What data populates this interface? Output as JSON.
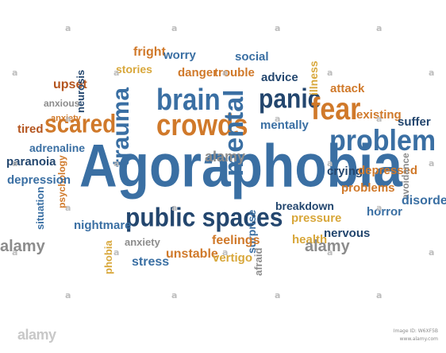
{
  "colors": {
    "blue": "#3a6fa3",
    "navy": "#23466e",
    "orange": "#d0792a",
    "rust": "#b4551f",
    "gold": "#d8a73a",
    "grey": "#8c8c8c",
    "watermark": "#bdbdbd"
  },
  "watermark": {
    "mark": "a",
    "logo": "alamy",
    "image_id_line": "Image ID: W6XF5B",
    "site_line": "www.alamy.com"
  },
  "words": [
    {
      "text": "Agoraphobia",
      "color": "blue"
    },
    {
      "text": "public spaces",
      "color": "navy"
    },
    {
      "text": "problem",
      "color": "blue"
    },
    {
      "text": "crowds",
      "color": "orange"
    },
    {
      "text": "brain",
      "color": "blue"
    },
    {
      "text": "trauma",
      "color": "blue"
    },
    {
      "text": "mental",
      "color": "blue"
    },
    {
      "text": "panic",
      "color": "navy"
    },
    {
      "text": "fear",
      "color": "orange"
    },
    {
      "text": "scared",
      "color": "orange"
    },
    {
      "text": "fright",
      "color": "orange"
    },
    {
      "text": "worry",
      "color": "blue"
    },
    {
      "text": "social",
      "color": "blue"
    },
    {
      "text": "stories",
      "color": "gold"
    },
    {
      "text": "danger",
      "color": "orange"
    },
    {
      "text": "trouble",
      "color": "orange"
    },
    {
      "text": "advice",
      "color": "navy"
    },
    {
      "text": "illness",
      "color": "gold"
    },
    {
      "text": "upset",
      "color": "rust"
    },
    {
      "text": "neurosis",
      "color": "navy"
    },
    {
      "text": "attack",
      "color": "orange"
    },
    {
      "text": "anxious",
      "color": "grey"
    },
    {
      "text": "existing",
      "color": "orange"
    },
    {
      "text": "suffer",
      "color": "navy"
    },
    {
      "text": "anxiety",
      "color": "orange"
    },
    {
      "text": "tired",
      "color": "rust"
    },
    {
      "text": "mentally",
      "color": "blue"
    },
    {
      "text": "adrenaline",
      "color": "blue"
    },
    {
      "text": "paranoia",
      "color": "navy"
    },
    {
      "text": "psychology",
      "color": "orange"
    },
    {
      "text": "depression",
      "color": "blue"
    },
    {
      "text": "crying",
      "color": "navy"
    },
    {
      "text": "depressed",
      "color": "orange"
    },
    {
      "text": "avoidance",
      "color": "grey"
    },
    {
      "text": "problems",
      "color": "orange"
    },
    {
      "text": "situation",
      "color": "blue"
    },
    {
      "text": "breakdown",
      "color": "navy"
    },
    {
      "text": "horror",
      "color": "blue"
    },
    {
      "text": "disorder",
      "color": "blue"
    },
    {
      "text": "nightmare",
      "color": "blue"
    },
    {
      "text": "surprise",
      "color": "blue"
    },
    {
      "text": "pressure",
      "color": "gold"
    },
    {
      "text": "anxiety",
      "color": "grey"
    },
    {
      "text": "feelings",
      "color": "orange"
    },
    {
      "text": "health",
      "color": "gold"
    },
    {
      "text": "nervous",
      "color": "navy"
    },
    {
      "text": "phobia",
      "color": "gold"
    },
    {
      "text": "stress",
      "color": "blue"
    },
    {
      "text": "unstable",
      "color": "orange"
    },
    {
      "text": "vertigo",
      "color": "gold"
    },
    {
      "text": "afraid",
      "color": "grey"
    },
    {
      "text": "alamy",
      "color": "grey"
    },
    {
      "text": "alamy",
      "color": "grey"
    },
    {
      "text": "alamy",
      "color": "grey"
    }
  ]
}
